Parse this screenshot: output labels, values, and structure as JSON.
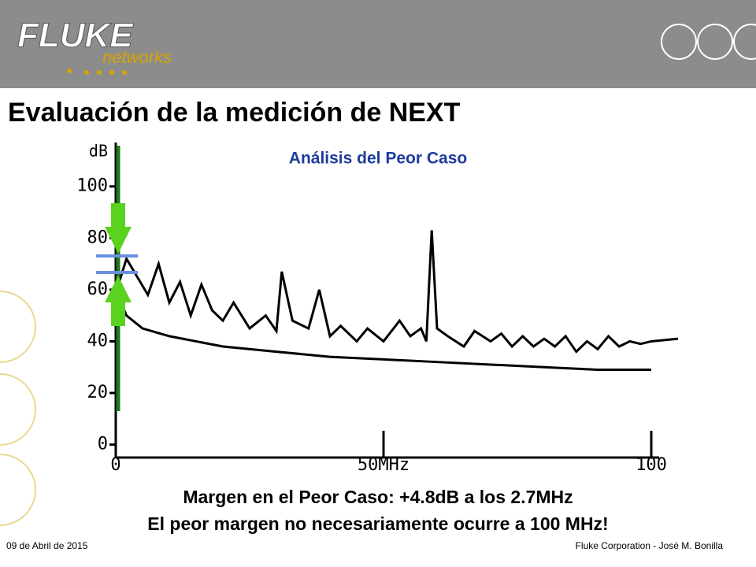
{
  "slide": {
    "logo": "FLUKE",
    "logo_sub": "networks",
    "title": "Evaluación de la medición de NEXT",
    "note_1": "Margen en el Peor Caso: +4.8dB a los 2.7MHz",
    "note_2": "El peor margen no necesariamente ocurre a 100 MHz!",
    "footer_left": "09 de Abril de 2015",
    "footer_right": "Fluke Corporation - José M. Bonilla"
  },
  "chart_data": {
    "type": "line",
    "title": "Análisis del Peor Caso",
    "y_label": "dB",
    "xlim": [
      0,
      105
    ],
    "ylim": [
      -5,
      117
    ],
    "xticks": [
      0,
      {
        "value": 50,
        "label": "50MHz"
      },
      100
    ],
    "yticks": [
      0,
      20,
      40,
      60,
      80,
      100
    ],
    "series": [
      {
        "color": "#000000",
        "x": [
          0.5,
          2,
          4,
          6,
          8,
          10,
          12,
          14,
          16,
          18,
          20,
          22,
          25,
          28,
          30,
          31,
          33,
          36,
          38,
          40,
          42,
          45,
          47,
          50,
          53,
          55,
          57,
          58,
          59,
          60,
          62,
          65,
          67,
          70,
          72,
          74,
          76,
          78,
          80,
          82,
          84,
          86,
          88,
          90,
          92,
          94,
          96,
          98,
          100,
          105
        ],
        "values": [
          62,
          72,
          65,
          58,
          70,
          55,
          63,
          50,
          62,
          52,
          48,
          55,
          45,
          50,
          44,
          67,
          48,
          45,
          60,
          42,
          46,
          40,
          45,
          40,
          48,
          42,
          45,
          40,
          83,
          45,
          42,
          38,
          44,
          40,
          43,
          38,
          42,
          38,
          41,
          38,
          42,
          36,
          40,
          37,
          42,
          38,
          40,
          39,
          40,
          41
        ]
      },
      {
        "color": "#000000",
        "x": [
          0.5,
          1,
          2,
          5,
          10,
          15,
          20,
          30,
          40,
          50,
          60,
          70,
          80,
          90,
          100
        ],
        "values": [
          58,
          55,
          50,
          45,
          42,
          40,
          38,
          36,
          34,
          33,
          32,
          31,
          30,
          29,
          29
        ]
      }
    ]
  }
}
